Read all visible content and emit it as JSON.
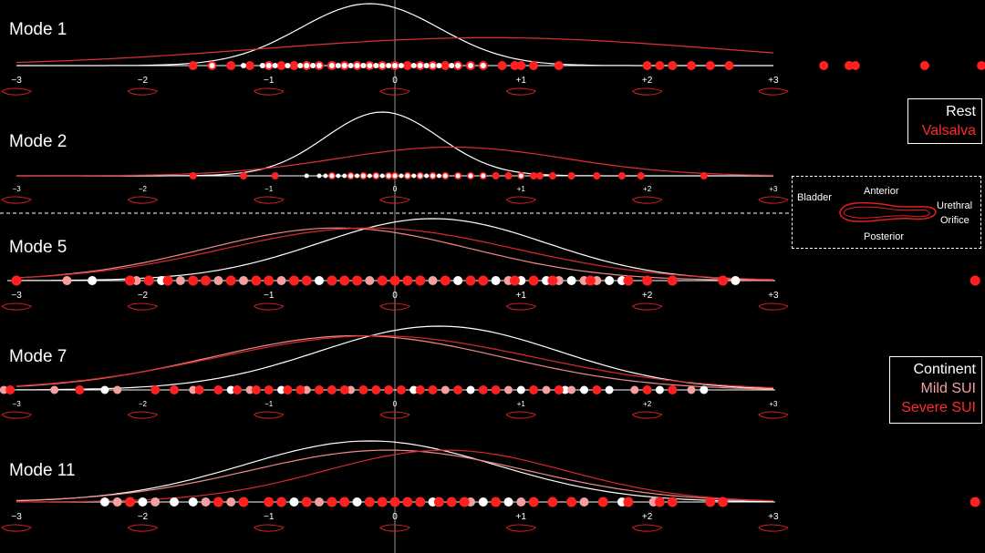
{
  "colors": {
    "background": "#000000",
    "white": "#ffffff",
    "red": "#ff2222",
    "light_red": "#f08a8a",
    "mid_red": "#d82a2a"
  },
  "legend_rest": {
    "items": [
      {
        "label": "Rest",
        "color": "#ffffff"
      },
      {
        "label": "Valsalva",
        "color": "#ff2a2a"
      }
    ]
  },
  "legend_sui": {
    "items": [
      {
        "label": "Continent",
        "color": "#ffffff"
      },
      {
        "label": "Mild SUI",
        "color": "#f4a0a0"
      },
      {
        "label": "Severe SUI",
        "color": "#ff2a2a"
      }
    ]
  },
  "diagram": {
    "bladder": "Bladder",
    "anterior": "Anterior",
    "urethral": "Urethral",
    "orifice": "Orifice",
    "posterior": "Posterior"
  },
  "chart_data": [
    {
      "type": "scatter",
      "title": "Mode 1",
      "tick_labels": [
        "−3",
        "−2",
        "−1",
        "0",
        "+1",
        "+2",
        "+3"
      ],
      "xlim": [
        -3,
        3
      ],
      "series": [
        {
          "name": "Rest",
          "curve": {
            "mean": -0.2,
            "sd": 0.55
          },
          "points": [
            -1.45,
            -1.2,
            -1.05,
            -1.0,
            -0.95,
            -0.85,
            -0.75,
            -0.7,
            -0.65,
            -0.6,
            -0.5,
            -0.45,
            -0.4,
            -0.35,
            -0.3,
            -0.25,
            -0.2,
            -0.15,
            -0.1,
            -0.05,
            0.0,
            0.05,
            0.15,
            0.2,
            0.25,
            0.3,
            0.35,
            0.45,
            0.5,
            0.6,
            0.7
          ]
        },
        {
          "name": "Valsalva",
          "curve": {
            "mean": 0.75,
            "sd": 1.8
          },
          "points": [
            -1.6,
            -1.45,
            -1.3,
            -1.15,
            -1.0,
            -0.9,
            -0.8,
            -0.7,
            -0.6,
            -0.5,
            -0.4,
            -0.3,
            -0.2,
            -0.1,
            0.0,
            0.1,
            0.2,
            0.3,
            0.4,
            0.5,
            0.6,
            0.7,
            0.85,
            0.95,
            1.0,
            1.1,
            1.3,
            2.0,
            2.1,
            2.2,
            2.35,
            2.5,
            2.65,
            3.4,
            3.6,
            3.65,
            4.2,
            4.65
          ]
        }
      ]
    },
    {
      "type": "scatter",
      "title": "Mode 2",
      "tick_labels": [
        "−3",
        "−2",
        "−1",
        "0",
        "+1",
        "+2",
        "+3"
      ],
      "xlim": [
        -3,
        3
      ],
      "series": [
        {
          "name": "Rest",
          "curve": {
            "mean": -0.1,
            "sd": 0.45
          },
          "points": [
            -0.7,
            -0.6,
            -0.55,
            -0.5,
            -0.45,
            -0.4,
            -0.35,
            -0.3,
            -0.25,
            -0.2,
            -0.15,
            -0.1,
            -0.05,
            0.0,
            0.05,
            0.1,
            0.15,
            0.2,
            0.25,
            0.3,
            0.35,
            0.4,
            0.5,
            0.6,
            0.7,
            1.0
          ]
        },
        {
          "name": "Valsalva",
          "curve": {
            "mean": 0.45,
            "sd": 0.9
          },
          "points": [
            -1.6,
            -1.2,
            -0.95,
            -0.5,
            -0.35,
            -0.25,
            -0.15,
            -0.05,
            0.0,
            0.1,
            0.2,
            0.3,
            0.4,
            0.5,
            0.6,
            0.7,
            0.8,
            0.9,
            1.0,
            1.1,
            1.15,
            1.25,
            1.4,
            1.6,
            1.8,
            1.95,
            2.45
          ]
        }
      ]
    },
    {
      "type": "scatter",
      "title": "Mode 5",
      "tick_labels": [
        "−3",
        "−2",
        "−1",
        "0",
        "+1",
        "+2",
        "+3"
      ],
      "xlim": [
        -3,
        3
      ],
      "series": [
        {
          "name": "Continent",
          "curve": {
            "mean": 0.3,
            "sd": 0.9
          },
          "points": [
            -2.4,
            -1.85,
            -0.6,
            0.2,
            0.5,
            0.8,
            1.0,
            1.2,
            1.4,
            1.7,
            1.8,
            2.7
          ]
        },
        {
          "name": "Mild SUI",
          "curve": {
            "mean": -0.45,
            "sd": 1.05
          },
          "points": [
            -2.6,
            -2.05,
            -1.7,
            -1.4,
            -1.2,
            -0.9,
            -0.2,
            0.3,
            0.9,
            1.3,
            1.5,
            1.6
          ]
        },
        {
          "name": "Severe SUI",
          "curve": {
            "mean": -0.2,
            "sd": 1.15
          },
          "points": [
            -3.0,
            -2.1,
            -1.95,
            -1.8,
            -1.6,
            -1.5,
            -1.3,
            -1.1,
            -1.0,
            -0.8,
            -0.7,
            -0.5,
            -0.4,
            -0.3,
            -0.1,
            0.0,
            0.1,
            0.2,
            0.4,
            0.6,
            0.7,
            0.95,
            1.1,
            1.25,
            1.55,
            1.85,
            2.0,
            2.2,
            2.6,
            4.6
          ]
        }
      ]
    },
    {
      "type": "scatter",
      "title": "Mode 7",
      "tick_labels": [
        "−3",
        "−2",
        "−1",
        "0",
        "+1",
        "+2",
        "+3"
      ],
      "xlim": [
        -3,
        3
      ],
      "series": [
        {
          "name": "Continent",
          "curve": {
            "mean": 0.35,
            "sd": 0.95
          },
          "points": [
            -2.3,
            -1.3,
            -0.9,
            0.15,
            0.6,
            1.0,
            1.35,
            1.5,
            1.7,
            2.1,
            2.45
          ]
        },
        {
          "name": "Mild SUI",
          "curve": {
            "mean": -0.3,
            "sd": 1.15
          },
          "points": [
            -3.1,
            -2.7,
            -2.2,
            -1.6,
            -1.15,
            -0.7,
            -0.35,
            0.4,
            0.9,
            1.2,
            1.4,
            1.9,
            2.35
          ]
        },
        {
          "name": "Severe SUI",
          "curve": {
            "mean": -0.15,
            "sd": 1.25
          },
          "points": [
            -3.05,
            -2.5,
            -1.9,
            -1.75,
            -1.55,
            -1.4,
            -1.25,
            -1.1,
            -1.0,
            -0.85,
            -0.75,
            -0.6,
            -0.5,
            -0.4,
            -0.25,
            -0.15,
            -0.05,
            0.05,
            0.2,
            0.3,
            0.5,
            0.7,
            0.8,
            1.1,
            1.3,
            1.6,
            2.0,
            2.2
          ]
        }
      ]
    },
    {
      "type": "scatter",
      "title": "Mode 11",
      "tick_labels": [
        "−3",
        "−2",
        "−1",
        "0",
        "+1",
        "+2",
        "+3"
      ],
      "xlim": [
        -3,
        3
      ],
      "series": [
        {
          "name": "Continent",
          "curve": {
            "mean": -0.2,
            "sd": 1.0
          },
          "points": [
            -2.3,
            -2.0,
            -1.75,
            -1.6,
            -0.8,
            -0.3,
            0.3,
            0.7,
            0.9,
            1.8
          ]
        },
        {
          "name": "Mild SUI",
          "curve": {
            "mean": -0.05,
            "sd": 1.1
          },
          "points": [
            -2.2,
            -1.9,
            -1.5,
            -1.3,
            -0.6,
            0.6,
            1.0,
            1.5,
            2.05
          ]
        },
        {
          "name": "Severe SUI",
          "curve": {
            "mean": 0.4,
            "sd": 0.95
          },
          "points": [
            -2.1,
            -1.4,
            -1.2,
            -1.0,
            -0.9,
            -0.7,
            -0.5,
            -0.4,
            -0.2,
            -0.1,
            0.0,
            0.1,
            0.2,
            0.35,
            0.45,
            0.55,
            0.8,
            1.1,
            1.25,
            1.4,
            1.65,
            1.85,
            2.1,
            2.2,
            2.5,
            2.6,
            4.6
          ]
        }
      ]
    }
  ]
}
